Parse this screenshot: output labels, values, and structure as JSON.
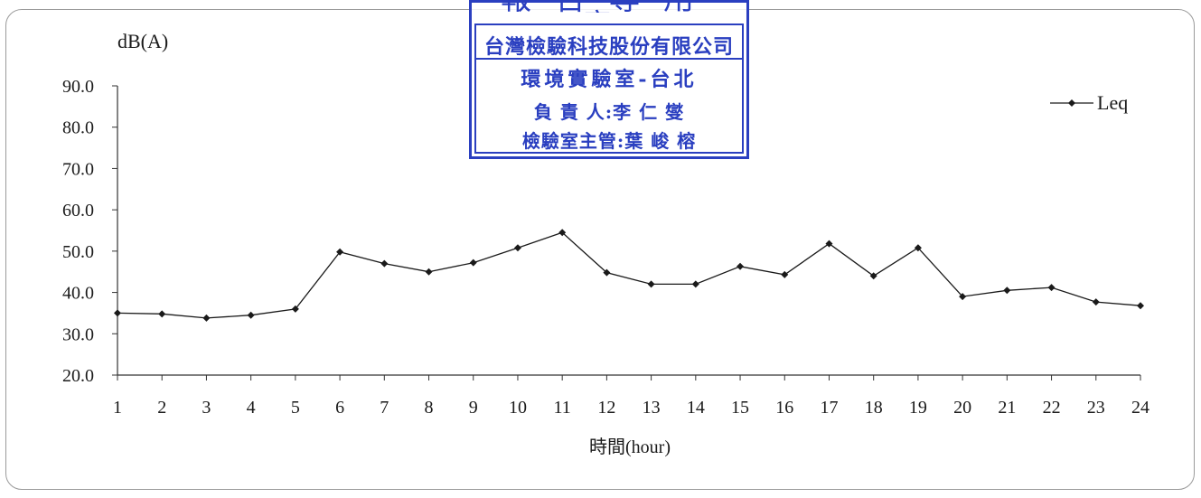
{
  "chart_data": {
    "type": "line",
    "title": "",
    "ylabel": "dB(A)",
    "xlabel": "時間(hour)",
    "ylim": [
      20,
      90
    ],
    "yticks": [
      "20.0",
      "30.0",
      "40.0",
      "50.0",
      "60.0",
      "70.0",
      "80.0",
      "90.0"
    ],
    "categories": [
      "1",
      "2",
      "3",
      "4",
      "5",
      "6",
      "7",
      "8",
      "9",
      "10",
      "11",
      "12",
      "13",
      "14",
      "15",
      "16",
      "17",
      "18",
      "19",
      "20",
      "21",
      "22",
      "23",
      "24"
    ],
    "series": [
      {
        "name": "Leq",
        "color": "#1a1a1a",
        "values": [
          35.0,
          34.8,
          33.8,
          34.5,
          36.0,
          49.8,
          47.0,
          45.0,
          47.2,
          50.8,
          54.5,
          44.8,
          42.0,
          42.0,
          46.3,
          44.3,
          51.8,
          44.0,
          50.8,
          39.0,
          40.5,
          41.2,
          37.7,
          36.8
        ]
      }
    ],
    "legend_position": "top-right",
    "grid": false
  },
  "stamp": {
    "header": "報告專用章",
    "line1": "台灣檢驗科技股份有限公司",
    "line2": "環境實驗室-台北",
    "line3": "負 責 人:李 仁 燮",
    "line4": "檢驗室主管:葉 峻 榕",
    "color": "#2a3fc0"
  }
}
